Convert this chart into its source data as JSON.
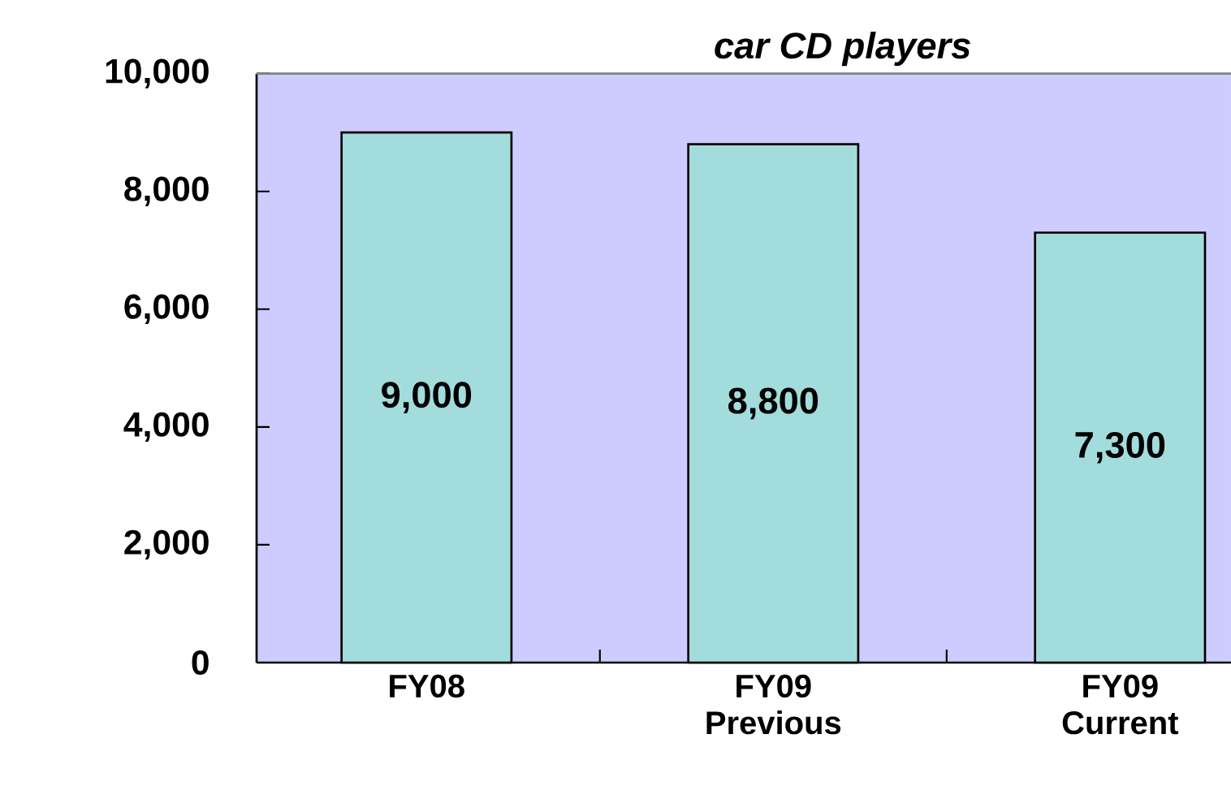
{
  "chart_data": {
    "type": "bar",
    "title": "car CD players",
    "categories": [
      "FY08",
      "FY09 Previous",
      "FY09 Current"
    ],
    "values": [
      9000,
      8800,
      7300
    ],
    "color": "#a3dcdc",
    "ylim": [
      0,
      10000
    ],
    "yticks": [
      0,
      {
        "value": 2000,
        "label": "2,000"
      },
      {
        "value": 4000,
        "label": "4,000"
      },
      {
        "value": 6000,
        "label": "6,000"
      },
      {
        "value": 8000,
        "label": "8,000"
      },
      {
        "value": 10000,
        "label": "10,000"
      }
    ],
    "value_labels": [
      "9,000",
      "8,800",
      "7,300"
    ]
  }
}
